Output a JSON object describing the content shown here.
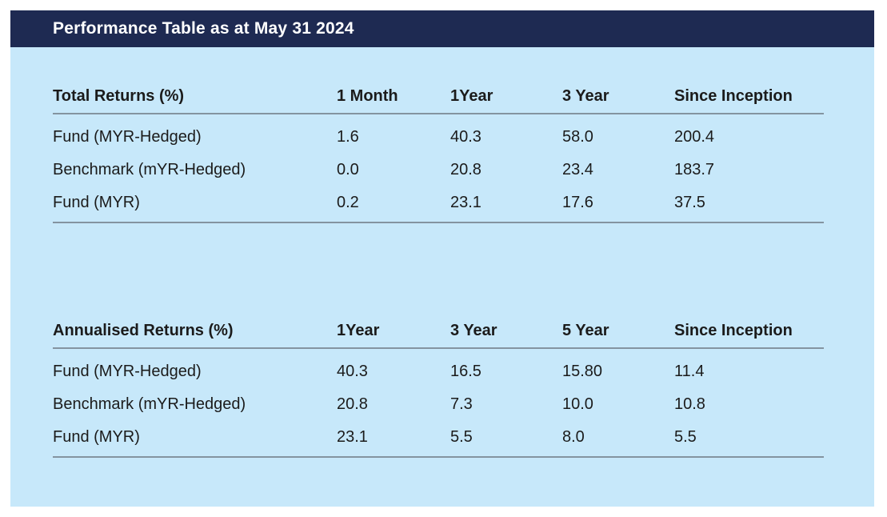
{
  "header": {
    "title": "Performance Table as at May 31 2024"
  },
  "colors": {
    "navy": "#1e2a52",
    "panel_blue": "#c7e8fa",
    "rule_gray": "#8494a0",
    "text_dark": "#1b1b1b",
    "title_white": "#ffffff"
  },
  "tables": [
    {
      "title": "Total Returns (%)",
      "columns": [
        "1 Month",
        "1Year",
        "3 Year",
        "Since Inception"
      ],
      "rows": [
        {
          "label": "Fund (MYR-Hedged)",
          "values": [
            "1.6",
            "40.3",
            "58.0",
            "200.4"
          ]
        },
        {
          "label": "Benchmark (mYR-Hedged)",
          "values": [
            "0.0",
            "20.8",
            "23.4",
            "183.7"
          ]
        },
        {
          "label": "Fund (MYR)",
          "values": [
            "0.2",
            "23.1",
            "17.6",
            "37.5"
          ]
        }
      ]
    },
    {
      "title": "Annualised Returns (%)",
      "columns": [
        "1Year",
        "3 Year",
        "5 Year",
        "Since Inception"
      ],
      "rows": [
        {
          "label": "Fund (MYR-Hedged)",
          "values": [
            "40.3",
            "16.5",
            "15.80",
            "11.4"
          ]
        },
        {
          "label": "Benchmark (mYR-Hedged)",
          "values": [
            "20.8",
            "7.3",
            "10.0",
            "10.8"
          ]
        },
        {
          "label": "Fund (MYR)",
          "values": [
            "23.1",
            "5.5",
            "8.0",
            "5.5"
          ]
        }
      ]
    }
  ]
}
